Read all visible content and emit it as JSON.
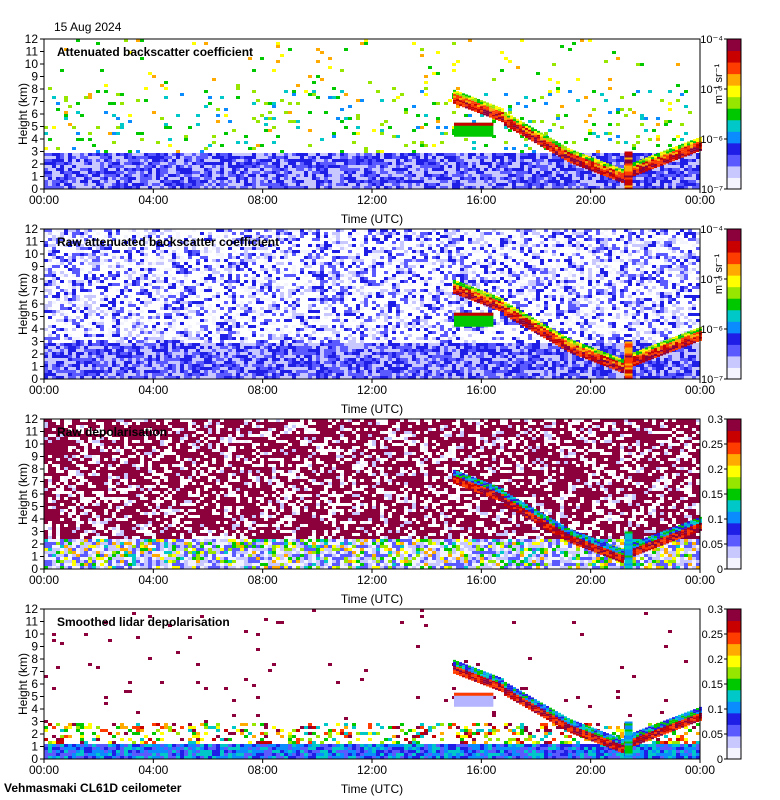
{
  "header": {
    "date": "15 Aug 2024"
  },
  "footer": {
    "site": "Vehmasmaki CL61D ceilometer"
  },
  "chart_data": [
    {
      "type": "heatmap",
      "title": "Attenuated backscatter coefficient",
      "xlabel": "Time (UTC)",
      "ylabel": "Height (km)",
      "x_ticks": [
        "00:00",
        "04:00",
        "08:00",
        "12:00",
        "16:00",
        "20:00",
        "00:00"
      ],
      "y_ticks": [
        "0",
        "1",
        "2",
        "3",
        "4",
        "5",
        "6",
        "7",
        "8",
        "9",
        "10",
        "11",
        "12"
      ],
      "ylim": [
        0,
        12
      ],
      "colorbar": {
        "scale": "log",
        "range": [
          1e-07,
          0.0001
        ],
        "ticks": [
          "10⁻⁷",
          "10⁻⁶",
          "10⁻⁵",
          "10⁻⁴"
        ],
        "label": "m⁻¹ sr⁻¹"
      }
    },
    {
      "type": "heatmap",
      "title": "Raw attenuated backscatter coefficient",
      "xlabel": "Time (UTC)",
      "ylabel": "Height (km)",
      "x_ticks": [
        "00:00",
        "04:00",
        "08:00",
        "12:00",
        "16:00",
        "20:00",
        "00:00"
      ],
      "y_ticks": [
        "0",
        "1",
        "2",
        "3",
        "4",
        "5",
        "6",
        "7",
        "8",
        "9",
        "10",
        "11",
        "12"
      ],
      "ylim": [
        0,
        12
      ],
      "colorbar": {
        "scale": "log",
        "range": [
          1e-07,
          0.0001
        ],
        "ticks": [
          "10⁻⁷",
          "10⁻⁶",
          "10⁻⁵",
          "10⁻⁴"
        ],
        "label": "m⁻¹ sr⁻¹"
      }
    },
    {
      "type": "heatmap",
      "title": "Raw depolarisation",
      "xlabel": "Time (UTC)",
      "ylabel": "Height (km)",
      "x_ticks": [
        "00:00",
        "04:00",
        "08:00",
        "12:00",
        "16:00",
        "20:00",
        "00:00"
      ],
      "y_ticks": [
        "0",
        "1",
        "2",
        "3",
        "4",
        "5",
        "6",
        "7",
        "8",
        "9",
        "10",
        "11",
        "12"
      ],
      "ylim": [
        0,
        12
      ],
      "colorbar": {
        "scale": "linear",
        "range": [
          0,
          0.3
        ],
        "ticks": [
          "0",
          "0.05",
          "0.1",
          "0.15",
          "0.2",
          "0.25",
          "0.3"
        ],
        "label": ""
      }
    },
    {
      "type": "heatmap",
      "title": "Smoothed lidar depolarisation",
      "xlabel": "Time (UTC)",
      "ylabel": "Height (km)",
      "x_ticks": [
        "00:00",
        "04:00",
        "08:00",
        "12:00",
        "16:00",
        "20:00",
        "00:00"
      ],
      "y_ticks": [
        "0",
        "1",
        "2",
        "3",
        "4",
        "5",
        "6",
        "7",
        "8",
        "9",
        "10",
        "11",
        "12"
      ],
      "ylim": [
        0,
        12
      ],
      "colorbar": {
        "scale": "linear",
        "range": [
          0,
          0.3
        ],
        "ticks": [
          "0",
          "0.05",
          "0.1",
          "0.15",
          "0.2",
          "0.25",
          "0.3"
        ],
        "label": ""
      }
    }
  ],
  "colors": {
    "scale": [
      "#f4f4ff",
      "#c8c8ff",
      "#5a5aff",
      "#1e1ee6",
      "#0a8cff",
      "#00c8c8",
      "#00c800",
      "#96e600",
      "#ffff00",
      "#ffaa00",
      "#ff3c00",
      "#c80000",
      "#8c003c"
    ]
  }
}
